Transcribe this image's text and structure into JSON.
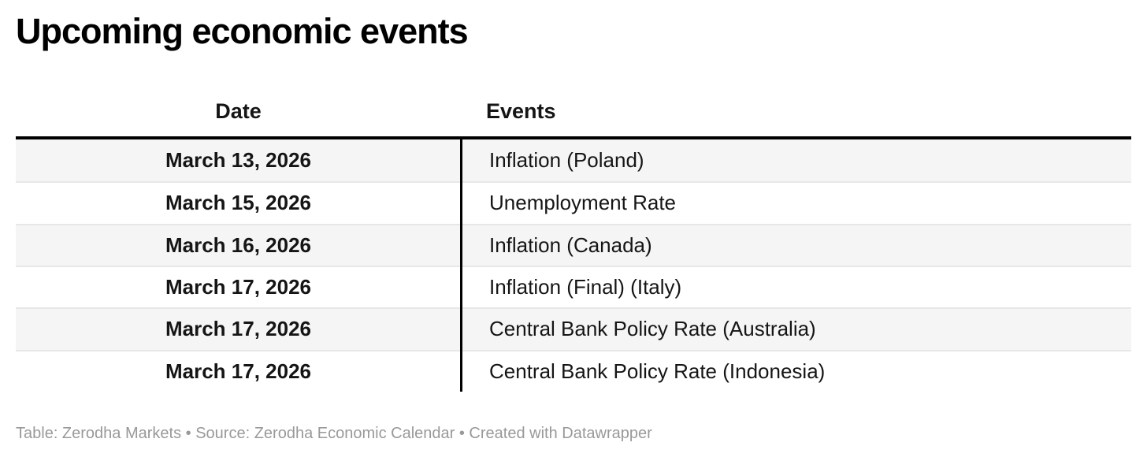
{
  "title": "Upcoming economic events",
  "chart_data": {
    "type": "table",
    "title": "Upcoming economic events",
    "columns": [
      "Date",
      "Events"
    ],
    "rows": [
      [
        "March 13, 2026",
        "Inflation (Poland)"
      ],
      [
        "March 15, 2026",
        "Unemployment Rate"
      ],
      [
        "March 16, 2026",
        "Inflation (Canada)"
      ],
      [
        "March 17, 2026",
        "Inflation (Final) (Italy)"
      ],
      [
        "March 17, 2026",
        "Central Bank Policy Rate (Australia)"
      ],
      [
        "March 17, 2026",
        "Central Bank Policy Rate (Indonesia)"
      ]
    ],
    "layout_hints": {
      "date_column_align": "center",
      "events_column_align": "left",
      "zebra_striping": true,
      "header_rule": "thick-black",
      "column_divider": "black-vertical"
    }
  },
  "footer": {
    "prefix": "Table: Zerodha Markets • Source: ",
    "source_link": "Zerodha Economic Calendar",
    "middle": " • Created with ",
    "created_with_link": "Datawrapper"
  },
  "colors": {
    "row_alt_bg": "#f5f5f5",
    "separator": "#e7e7e7",
    "rule": "#000000",
    "footer_text": "#999999",
    "text": "#151515"
  }
}
